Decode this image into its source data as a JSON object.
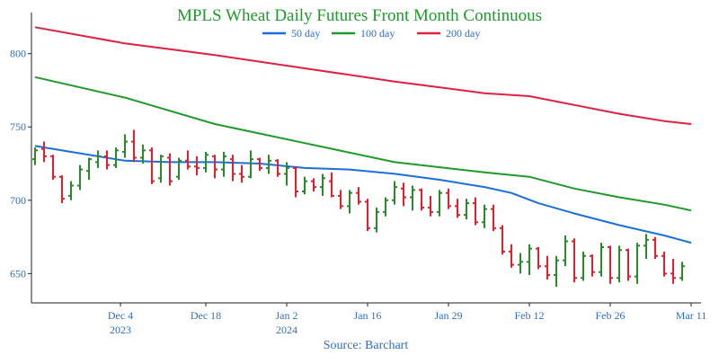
{
  "colors": {
    "ma50": "#1a6fdc",
    "ma100": "#1e9a2a",
    "ma200": "#e02040",
    "up": "#2a8a2a",
    "down": "#e0202e",
    "axis_text": "#2f6fc0",
    "title": "#1e9a2a"
  },
  "chart_data": {
    "type": "ohlc",
    "title": "MPLS Wheat Daily Futures Front Month Continuous",
    "source": "Source: Barchart",
    "legend": {
      "placement": "top-center",
      "items": [
        {
          "name": "50 day",
          "color": "#1a6fdc"
        },
        {
          "name": "100 day",
          "color": "#1e9a2a"
        },
        {
          "name": "200 day",
          "color": "#e02040"
        }
      ]
    },
    "yaxis": {
      "range": [
        630,
        828
      ],
      "ticks": [
        650,
        700,
        750,
        800
      ]
    },
    "xaxis": {
      "range": [
        0,
        74
      ],
      "ticks": [
        {
          "at": 9.5,
          "label": "Dec 4",
          "year": "2023"
        },
        {
          "at": 19,
          "label": "Dec 18",
          "year": ""
        },
        {
          "at": 28,
          "label": "Jan 2",
          "year": "2024"
        },
        {
          "at": 37,
          "label": "Jan 16",
          "year": ""
        },
        {
          "at": 46,
          "label": "Jan 29",
          "year": ""
        },
        {
          "at": 55,
          "label": "Feb 12",
          "year": ""
        },
        {
          "at": 64,
          "label": "Feb 26",
          "year": ""
        },
        {
          "at": 73,
          "label": "Mar 11",
          "year": ""
        }
      ]
    },
    "grid": false,
    "bars": [
      [
        728,
        736,
        724,
        734
      ],
      [
        735,
        740,
        726,
        730
      ],
      [
        730,
        731,
        714,
        716
      ],
      [
        716,
        717,
        698,
        701
      ],
      [
        703,
        713,
        700,
        710
      ],
      [
        710,
        724,
        707,
        721
      ],
      [
        720,
        729,
        714,
        728
      ],
      [
        726,
        734,
        722,
        730
      ],
      [
        730,
        734,
        721,
        724
      ],
      [
        724,
        736,
        722,
        734
      ],
      [
        733,
        745,
        729,
        740
      ],
      [
        740,
        748,
        726,
        729
      ],
      [
        729,
        738,
        725,
        734
      ],
      [
        734,
        736,
        711,
        713
      ],
      [
        715,
        731,
        712,
        730
      ],
      [
        729,
        732,
        710,
        713
      ],
      [
        716,
        729,
        714,
        727
      ],
      [
        727,
        734,
        721,
        723
      ],
      [
        723,
        730,
        717,
        722
      ],
      [
        722,
        733,
        719,
        731
      ],
      [
        730,
        731,
        715,
        721
      ],
      [
        721,
        733,
        716,
        730
      ],
      [
        728,
        731,
        713,
        718
      ],
      [
        718,
        724,
        712,
        716
      ],
      [
        716,
        734,
        715,
        728
      ],
      [
        728,
        729,
        720,
        722
      ],
      [
        722,
        731,
        718,
        727
      ],
      [
        727,
        728,
        716,
        718
      ],
      [
        718,
        726,
        710,
        722
      ],
      [
        722,
        723,
        702,
        706
      ],
      [
        706,
        716,
        704,
        713
      ],
      [
        713,
        715,
        706,
        709
      ],
      [
        709,
        718,
        703,
        715
      ],
      [
        713,
        719,
        702,
        703
      ],
      [
        703,
        707,
        694,
        696
      ],
      [
        696,
        707,
        691,
        705
      ],
      [
        705,
        709,
        697,
        699
      ],
      [
        699,
        701,
        679,
        681
      ],
      [
        681,
        695,
        678,
        692
      ],
      [
        692,
        702,
        689,
        700
      ],
      [
        700,
        713,
        697,
        709
      ],
      [
        708,
        712,
        696,
        702
      ],
      [
        702,
        710,
        693,
        707
      ],
      [
        707,
        708,
        693,
        695
      ],
      [
        695,
        703,
        689,
        692
      ],
      [
        692,
        707,
        689,
        705
      ],
      [
        705,
        708,
        694,
        696
      ],
      [
        696,
        701,
        688,
        690
      ],
      [
        690,
        701,
        687,
        698
      ],
      [
        698,
        702,
        683,
        685
      ],
      [
        685,
        697,
        681,
        694
      ],
      [
        694,
        697,
        679,
        681
      ],
      [
        681,
        683,
        663,
        665
      ],
      [
        665,
        670,
        654,
        656
      ],
      [
        656,
        664,
        650,
        658
      ],
      [
        658,
        670,
        649,
        667
      ],
      [
        667,
        668,
        653,
        655
      ],
      [
        655,
        662,
        646,
        649
      ],
      [
        649,
        662,
        641,
        659
      ],
      [
        659,
        676,
        655,
        672
      ],
      [
        672,
        674,
        644,
        647
      ],
      [
        647,
        665,
        645,
        662
      ],
      [
        662,
        663,
        648,
        651
      ],
      [
        651,
        671,
        648,
        668
      ],
      [
        668,
        669,
        643,
        647
      ],
      [
        647,
        669,
        644,
        666
      ],
      [
        666,
        667,
        645,
        648
      ],
      [
        648,
        671,
        643,
        669
      ],
      [
        669,
        677,
        660,
        673
      ],
      [
        673,
        675,
        660,
        662
      ],
      [
        662,
        665,
        648,
        650
      ],
      [
        650,
        660,
        643,
        647
      ],
      [
        647,
        658,
        645,
        655
      ]
    ],
    "series": [
      {
        "name": "50 day",
        "x": [
          0,
          5,
          10,
          15,
          20,
          25,
          30,
          35,
          40,
          45,
          50,
          53,
          56,
          60,
          65,
          70,
          73
        ],
        "values": [
          737,
          732,
          727,
          726,
          726,
          725,
          722,
          721,
          718,
          714,
          709,
          705,
          698,
          691,
          683,
          676,
          671
        ]
      },
      {
        "name": "100 day",
        "x": [
          0,
          10,
          20,
          30,
          40,
          50,
          55,
          60,
          65,
          70,
          73
        ],
        "values": [
          784,
          770,
          752,
          739,
          726,
          719,
          716,
          708,
          702,
          697,
          693
        ]
      },
      {
        "name": "200 day",
        "x": [
          0,
          10,
          20,
          30,
          40,
          50,
          55,
          60,
          65,
          70,
          73
        ],
        "values": [
          818,
          807,
          799,
          790,
          781,
          773,
          771,
          765,
          759,
          754,
          752
        ]
      }
    ]
  }
}
